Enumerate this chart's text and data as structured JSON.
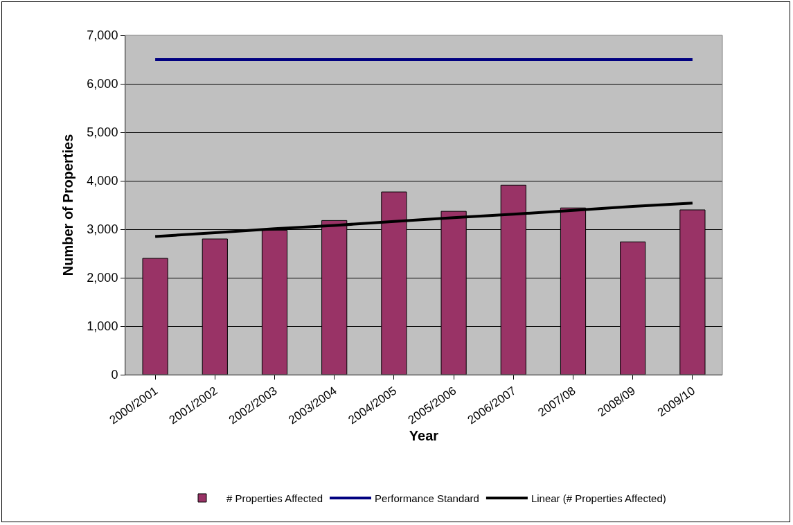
{
  "chart_data": {
    "type": "bar",
    "xlabel": "Year",
    "ylabel": "Number of Properties",
    "categories": [
      "2000/2001",
      "2001/2002",
      "2002/2003",
      "2003/2004",
      "2004/2005",
      "2005/2006",
      "2006/2007",
      "2007/08",
      "2008/09",
      "2009/10"
    ],
    "series": [
      {
        "name": "# Properties Affected",
        "color": "#993366",
        "values": [
          2400,
          2800,
          2980,
          3180,
          3770,
          3370,
          3910,
          3440,
          2740,
          3400
        ]
      },
      {
        "name": "Performance Standard",
        "type": "line",
        "color": "#000080",
        "values": [
          6500,
          6500,
          6500,
          6500,
          6500,
          6500,
          6500,
          6500,
          6500,
          6500
        ]
      },
      {
        "name": "Linear (# Properties Affected)",
        "type": "line",
        "color": "#000000",
        "values": [
          2850,
          2930,
          3010,
          3080,
          3160,
          3240,
          3310,
          3390,
          3470,
          3540
        ]
      }
    ],
    "ylim": [
      0,
      7000
    ],
    "yticks": [
      {
        "value": 0,
        "label": "0"
      },
      {
        "value": 1000,
        "label": "1,000"
      },
      {
        "value": 2000,
        "label": "2,000"
      },
      {
        "value": 3000,
        "label": "3,000"
      },
      {
        "value": 4000,
        "label": "4,000"
      },
      {
        "value": 5000,
        "label": "5,000"
      },
      {
        "value": 6000,
        "label": "6,000"
      },
      {
        "value": 7000,
        "label": "7,000"
      }
    ],
    "grid": "y",
    "legend": "bottom",
    "marker": "none"
  }
}
